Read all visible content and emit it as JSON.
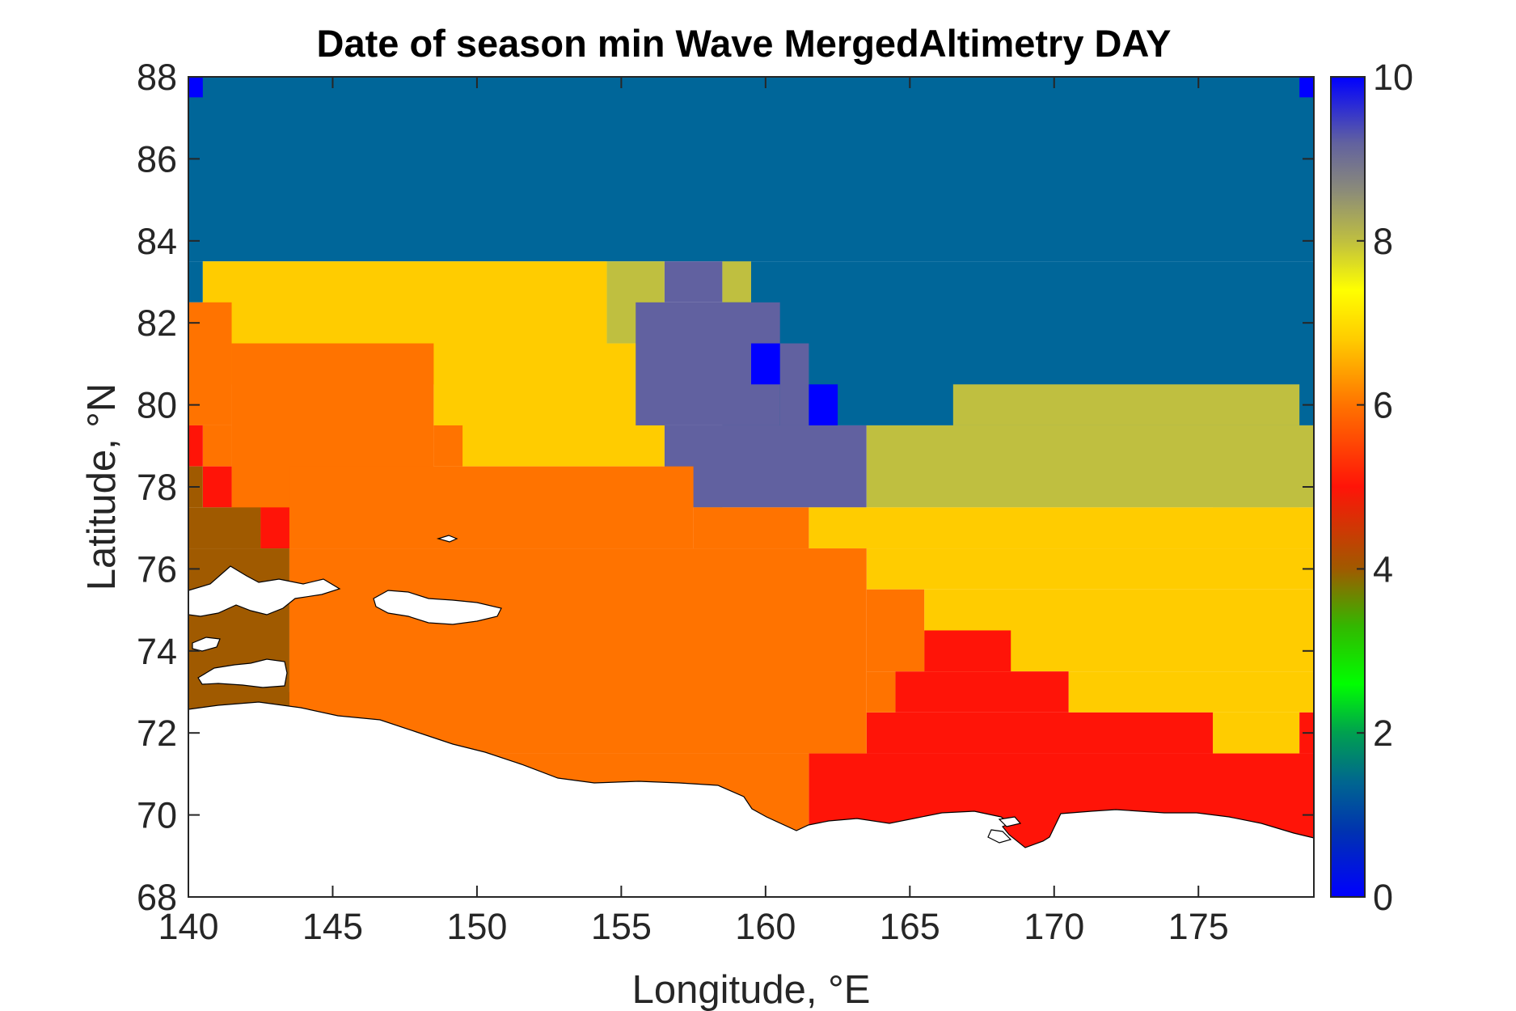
{
  "chart_data": {
    "type": "heatmap",
    "title": "Date of season min Wave MergedAltimetry DAY",
    "xlabel": "Longitude, °E",
    "ylabel": "Latitude, °N",
    "xlim": [
      140,
      179
    ],
    "ylim": [
      68,
      88
    ],
    "xticks": [
      "140",
      "145",
      "150",
      "155",
      "160",
      "165",
      "170",
      "175"
    ],
    "yticks": [
      "68",
      "70",
      "72",
      "74",
      "76",
      "78",
      "80",
      "82",
      "84",
      "86",
      "88"
    ],
    "colorbar": {
      "ticks": [
        "0",
        "2",
        "4",
        "6",
        "8",
        "10"
      ],
      "range": [
        0,
        10
      ]
    },
    "grid": false,
    "cell_size_deg": {
      "lon": 1,
      "lat": 1
    },
    "regions": [
      {
        "value": 1.0,
        "color": "#006699",
        "lon": [
          140,
          179
        ],
        "lat": [
          83.5,
          88
        ]
      },
      {
        "value": 1.0,
        "color": "#006699",
        "lon": [
          158.5,
          179
        ],
        "lat": [
          79.5,
          83.5
        ]
      },
      {
        "value": 1.0,
        "color": "#006699",
        "lon": [
          140,
          140.5
        ],
        "lat": [
          82.5,
          83.5
        ]
      },
      {
        "value": 6.8,
        "color": "#FFCC00",
        "lon": [
          140.5,
          154.5
        ],
        "lat": [
          80.5,
          83.5
        ]
      },
      {
        "value": 6.8,
        "color": "#FFCC00",
        "lon": [
          148.5,
          156.5
        ],
        "lat": [
          78.5,
          81.5
        ]
      },
      {
        "value": 6.8,
        "color": "#FFCC00",
        "lon": [
          157.5,
          158.5
        ],
        "lat": [
          77.5,
          78.5
        ]
      },
      {
        "value": 8.0,
        "color": "#BFBF40",
        "lon": [
          154.5,
          156.5
        ],
        "lat": [
          81.5,
          83.5
        ]
      },
      {
        "value": 8.0,
        "color": "#BFBF40",
        "lon": [
          158.5,
          159.5
        ],
        "lat": [
          82.5,
          83.5
        ]
      },
      {
        "value": 9.0,
        "color": "#6161A0",
        "lon": [
          156.5,
          158.5
        ],
        "lat": [
          82.5,
          83.5
        ]
      },
      {
        "value": 9.0,
        "color": "#6161A0",
        "lon": [
          155.5,
          160.5
        ],
        "lat": [
          79.5,
          82.5
        ]
      },
      {
        "value": 9.0,
        "color": "#6161A0",
        "lon": [
          156.5,
          163.5
        ],
        "lat": [
          77.5,
          79.5
        ]
      },
      {
        "value": 9.0,
        "color": "#6161A0",
        "lon": [
          160.5,
          161.5
        ],
        "lat": [
          79.5,
          81.5
        ]
      },
      {
        "value": 8.0,
        "color": "#BFBF40",
        "lon": [
          163.5,
          179
        ],
        "lat": [
          77.5,
          79.5
        ]
      },
      {
        "value": 8.0,
        "color": "#BFBF40",
        "lon": [
          166.5,
          178.5
        ],
        "lat": [
          79.5,
          80.5
        ]
      },
      {
        "value": 8.0,
        "color": "#BFBF40",
        "lon": [
          175.5,
          178.5
        ],
        "lat": [
          76.5,
          77.5
        ]
      },
      {
        "value": 6.8,
        "color": "#FFCC00",
        "lon": [
          161.5,
          179
        ],
        "lat": [
          76.5,
          77.5
        ]
      },
      {
        "value": 6.8,
        "color": "#FFCC00",
        "lon": [
          163.5,
          179
        ],
        "lat": [
          75.5,
          76.5
        ]
      },
      {
        "value": 6.8,
        "color": "#FFCC00",
        "lon": [
          165.5,
          179
        ],
        "lat": [
          73.5,
          75.5
        ]
      },
      {
        "value": 6.8,
        "color": "#FFCC00",
        "lon": [
          170.5,
          179
        ],
        "lat": [
          72.5,
          73.5
        ]
      },
      {
        "value": 6.8,
        "color": "#FFCC00",
        "lon": [
          175.5,
          178.5
        ],
        "lat": [
          71.5,
          72.5
        ]
      },
      {
        "value": 5.0,
        "color": "#FF1408",
        "lon": [
          165.5,
          168.5
        ],
        "lat": [
          73.5,
          74.5
        ]
      },
      {
        "value": 5.0,
        "color": "#FF1408",
        "lon": [
          164.5,
          170.5
        ],
        "lat": [
          72.5,
          73.5
        ]
      },
      {
        "value": 5.0,
        "color": "#FF1408",
        "lon": [
          163.5,
          175.5
        ],
        "lat": [
          71.5,
          72.5
        ]
      },
      {
        "value": 5.0,
        "color": "#FF1408",
        "lon": [
          178.5,
          179
        ],
        "lat": [
          71.5,
          72.5
        ]
      },
      {
        "value": 5.0,
        "color": "#FF1408",
        "lon": [
          161.5,
          179
        ],
        "lat": [
          68.5,
          71.5
        ]
      },
      {
        "value": 6.0,
        "color": "#FF7300",
        "lon": [
          141.5,
          148.5
        ],
        "lat": [
          76.5,
          81.5
        ]
      },
      {
        "value": 6.0,
        "color": "#FF7300",
        "lon": [
          140,
          141.5
        ],
        "lat": [
          79.5,
          82.5
        ]
      },
      {
        "value": 6.0,
        "color": "#FF7300",
        "lon": [
          140.5,
          141.5
        ],
        "lat": [
          78.5,
          79.5
        ]
      },
      {
        "value": 6.0,
        "color": "#FF7300",
        "lon": [
          148.5,
          149.5
        ],
        "lat": [
          78.5,
          79.5
        ]
      },
      {
        "value": 6.0,
        "color": "#FF7300",
        "lon": [
          143.5,
          157.5
        ],
        "lat": [
          76.5,
          78.5
        ]
      },
      {
        "value": 6.0,
        "color": "#FF7300",
        "lon": [
          157.5,
          161.5
        ],
        "lat": [
          76.5,
          77.5
        ]
      },
      {
        "value": 6.0,
        "color": "#FF7300",
        "lon": [
          143.5,
          163.5
        ],
        "lat": [
          71.5,
          76.5
        ]
      },
      {
        "value": 6.0,
        "color": "#FF7300",
        "lon": [
          163.5,
          165.5
        ],
        "lat": [
          73.5,
          75.5
        ]
      },
      {
        "value": 6.0,
        "color": "#FF7300",
        "lon": [
          163.5,
          164.5
        ],
        "lat": [
          72.5,
          73.5
        ]
      },
      {
        "value": 6.0,
        "color": "#FF7300",
        "lon": [
          143.5,
          161.5
        ],
        "lat": [
          68.5,
          71.5
        ]
      },
      {
        "value": 5.0,
        "color": "#FF1408",
        "lon": [
          140,
          140.5
        ],
        "lat": [
          78.5,
          79.5
        ]
      },
      {
        "value": 5.0,
        "color": "#FF1408",
        "lon": [
          140.5,
          141.5
        ],
        "lat": [
          77.5,
          78.5
        ]
      },
      {
        "value": 5.0,
        "color": "#FF1408",
        "lon": [
          142.5,
          143.5
        ],
        "lat": [
          76.5,
          77.5
        ]
      },
      {
        "value": 5.0,
        "color": "#FF1408",
        "lon": [
          142.5,
          143.5
        ],
        "lat": [
          72.5,
          73.0
        ]
      },
      {
        "value": 4.2,
        "color": "#A05A00",
        "lon": [
          140,
          140.5
        ],
        "lat": [
          77.5,
          78.5
        ]
      },
      {
        "value": 4.2,
        "color": "#A05A00",
        "lon": [
          140,
          142.5
        ],
        "lat": [
          76.5,
          77.5
        ]
      },
      {
        "value": 4.2,
        "color": "#A05A00",
        "lon": [
          140,
          143.5
        ],
        "lat": [
          72.5,
          76.5
        ]
      },
      {
        "value": 0.0,
        "color": "#0000FF",
        "lon": [
          140,
          140.5
        ],
        "lat": [
          87.5,
          88
        ]
      },
      {
        "value": 0.0,
        "color": "#0000FF",
        "lon": [
          178.5,
          179
        ],
        "lat": [
          87.5,
          88
        ]
      },
      {
        "value": 0.0,
        "color": "#0000FF",
        "lon": [
          159.5,
          160.5
        ],
        "lat": [
          80.5,
          81.5
        ]
      },
      {
        "value": 0.0,
        "color": "#0000FF",
        "lon": [
          161.5,
          162.5
        ],
        "lat": [
          79.5,
          80.5
        ]
      }
    ]
  }
}
